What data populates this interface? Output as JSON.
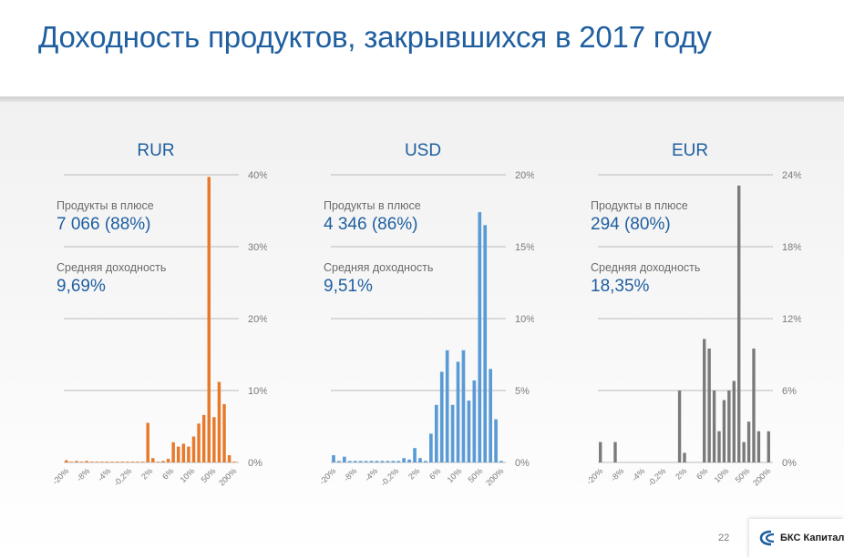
{
  "header": {
    "title": "Доходность продуктов, закрывшихся в 2017 году"
  },
  "footer": {
    "page_number": "22",
    "logo_text": "БКС Капитал"
  },
  "colors": {
    "title": "#1f5fa0",
    "rur": "#e8792b",
    "usd": "#5b9bd5",
    "eur": "#7a7a7a",
    "axis": "#a6a6a6"
  },
  "panels": [
    {
      "currency": "RUR",
      "positive_label": "Продукты в плюсе",
      "positive_value": "7 066  (88%)",
      "avg_label": "Средняя доходность",
      "avg_value": "9,69%"
    },
    {
      "currency": "USD",
      "positive_label": "Продукты в плюсе",
      "positive_value": "4 346  (86%)",
      "avg_label": "Средняя доходность",
      "avg_value": "9,51%"
    },
    {
      "currency": "EUR",
      "positive_label": "Продукты в плюсе",
      "positive_value": "294  (80%)",
      "avg_label": "Средняя доходность",
      "avg_value": "18,35%"
    }
  ],
  "chart_data": [
    {
      "type": "bar",
      "title": "RUR",
      "color": "#e8792b",
      "x_tick_labels": [
        "-20%",
        "-8%",
        "-4%",
        "-0,2%",
        "2%",
        "6%",
        "10%",
        "50%",
        "200%"
      ],
      "y_ticks": [
        "0%",
        "10%",
        "20%",
        "30%",
        "40%"
      ],
      "ylim": [
        0,
        40
      ],
      "values": [
        0.3,
        0.1,
        0.2,
        0.1,
        0.2,
        0.1,
        0.1,
        0.1,
        0.1,
        0.1,
        0.1,
        0.1,
        0.1,
        0.1,
        0.1,
        0.1,
        5.5,
        0.6,
        0.1,
        0.2,
        0.5,
        2.8,
        2.2,
        2.6,
        2.2,
        3.6,
        5.4,
        6.6,
        39.7,
        6.3,
        11.2,
        8.1,
        1.0,
        0.1
      ]
    },
    {
      "type": "bar",
      "title": "USD",
      "color": "#5b9bd5",
      "x_tick_labels": [
        "-20%",
        "-8%",
        "-4%",
        "-0,2%",
        "2%",
        "6%",
        "10%",
        "50%",
        "200%"
      ],
      "y_ticks": [
        "0%",
        "5%",
        "10%",
        "15%",
        "20%"
      ],
      "ylim": [
        0,
        20
      ],
      "values": [
        0.5,
        0.1,
        0.4,
        0.1,
        0.1,
        0.1,
        0.1,
        0.1,
        0.1,
        0.1,
        0.1,
        0.1,
        0.1,
        0.3,
        0.2,
        1.0,
        0.3,
        0.1,
        2.0,
        4.0,
        6.3,
        7.8,
        4.0,
        7.0,
        7.8,
        4.3,
        5.7,
        17.4,
        16.5,
        6.5,
        3.0,
        0.1
      ]
    },
    {
      "type": "bar",
      "title": "EUR",
      "color": "#7a7a7a",
      "x_tick_labels": [
        "-20%",
        "-8%",
        "-4%",
        "-0,2%",
        "2%",
        "6%",
        "10%",
        "50%",
        "200%"
      ],
      "y_ticks": [
        "0%",
        "6%",
        "12%",
        "18%",
        "24%"
      ],
      "ylim": [
        0,
        24
      ],
      "values": [
        1.7,
        0,
        0,
        1.7,
        0,
        0,
        0,
        0,
        0,
        0,
        0,
        0,
        0,
        0,
        0,
        0,
        6.0,
        0.8,
        0,
        0,
        0,
        10.3,
        9.5,
        6.0,
        2.6,
        5.2,
        6.0,
        6.8,
        23.1,
        1.7,
        3.4,
        9.5,
        2.6,
        0,
        2.6
      ]
    }
  ]
}
